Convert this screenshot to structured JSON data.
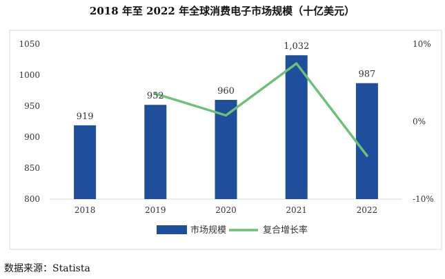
{
  "chart_data": {
    "type": "bar",
    "title": "2018 年至 2022 年全球消费电子市场规模（十亿美元）",
    "categories": [
      "2018",
      "2019",
      "2020",
      "2021",
      "2022"
    ],
    "ylim": [
      800,
      1050
    ],
    "yticks": [
      "800",
      "850",
      "900",
      "950",
      "1000",
      "1050"
    ],
    "y2lim": [
      -10,
      10
    ],
    "y2ticks": [
      "-10%",
      "0%",
      "10%"
    ],
    "series": [
      {
        "name": "市场规模",
        "type": "bar",
        "color": "#1f4e9c",
        "values": [
          919,
          952,
          960,
          1032,
          987
        ],
        "labels": [
          "919",
          "952",
          "960",
          "1,032",
          "987"
        ]
      },
      {
        "name": "复合增长率",
        "type": "line",
        "axis": "secondary",
        "color": "#6cc07a",
        "x": [
          "2019",
          "2020",
          "2021",
          "2022"
        ],
        "values": [
          3.6,
          0.8,
          7.5,
          -4.4
        ]
      }
    ],
    "legend_position": "bottom",
    "grid": false
  },
  "source_text": "数据来源：Statista"
}
